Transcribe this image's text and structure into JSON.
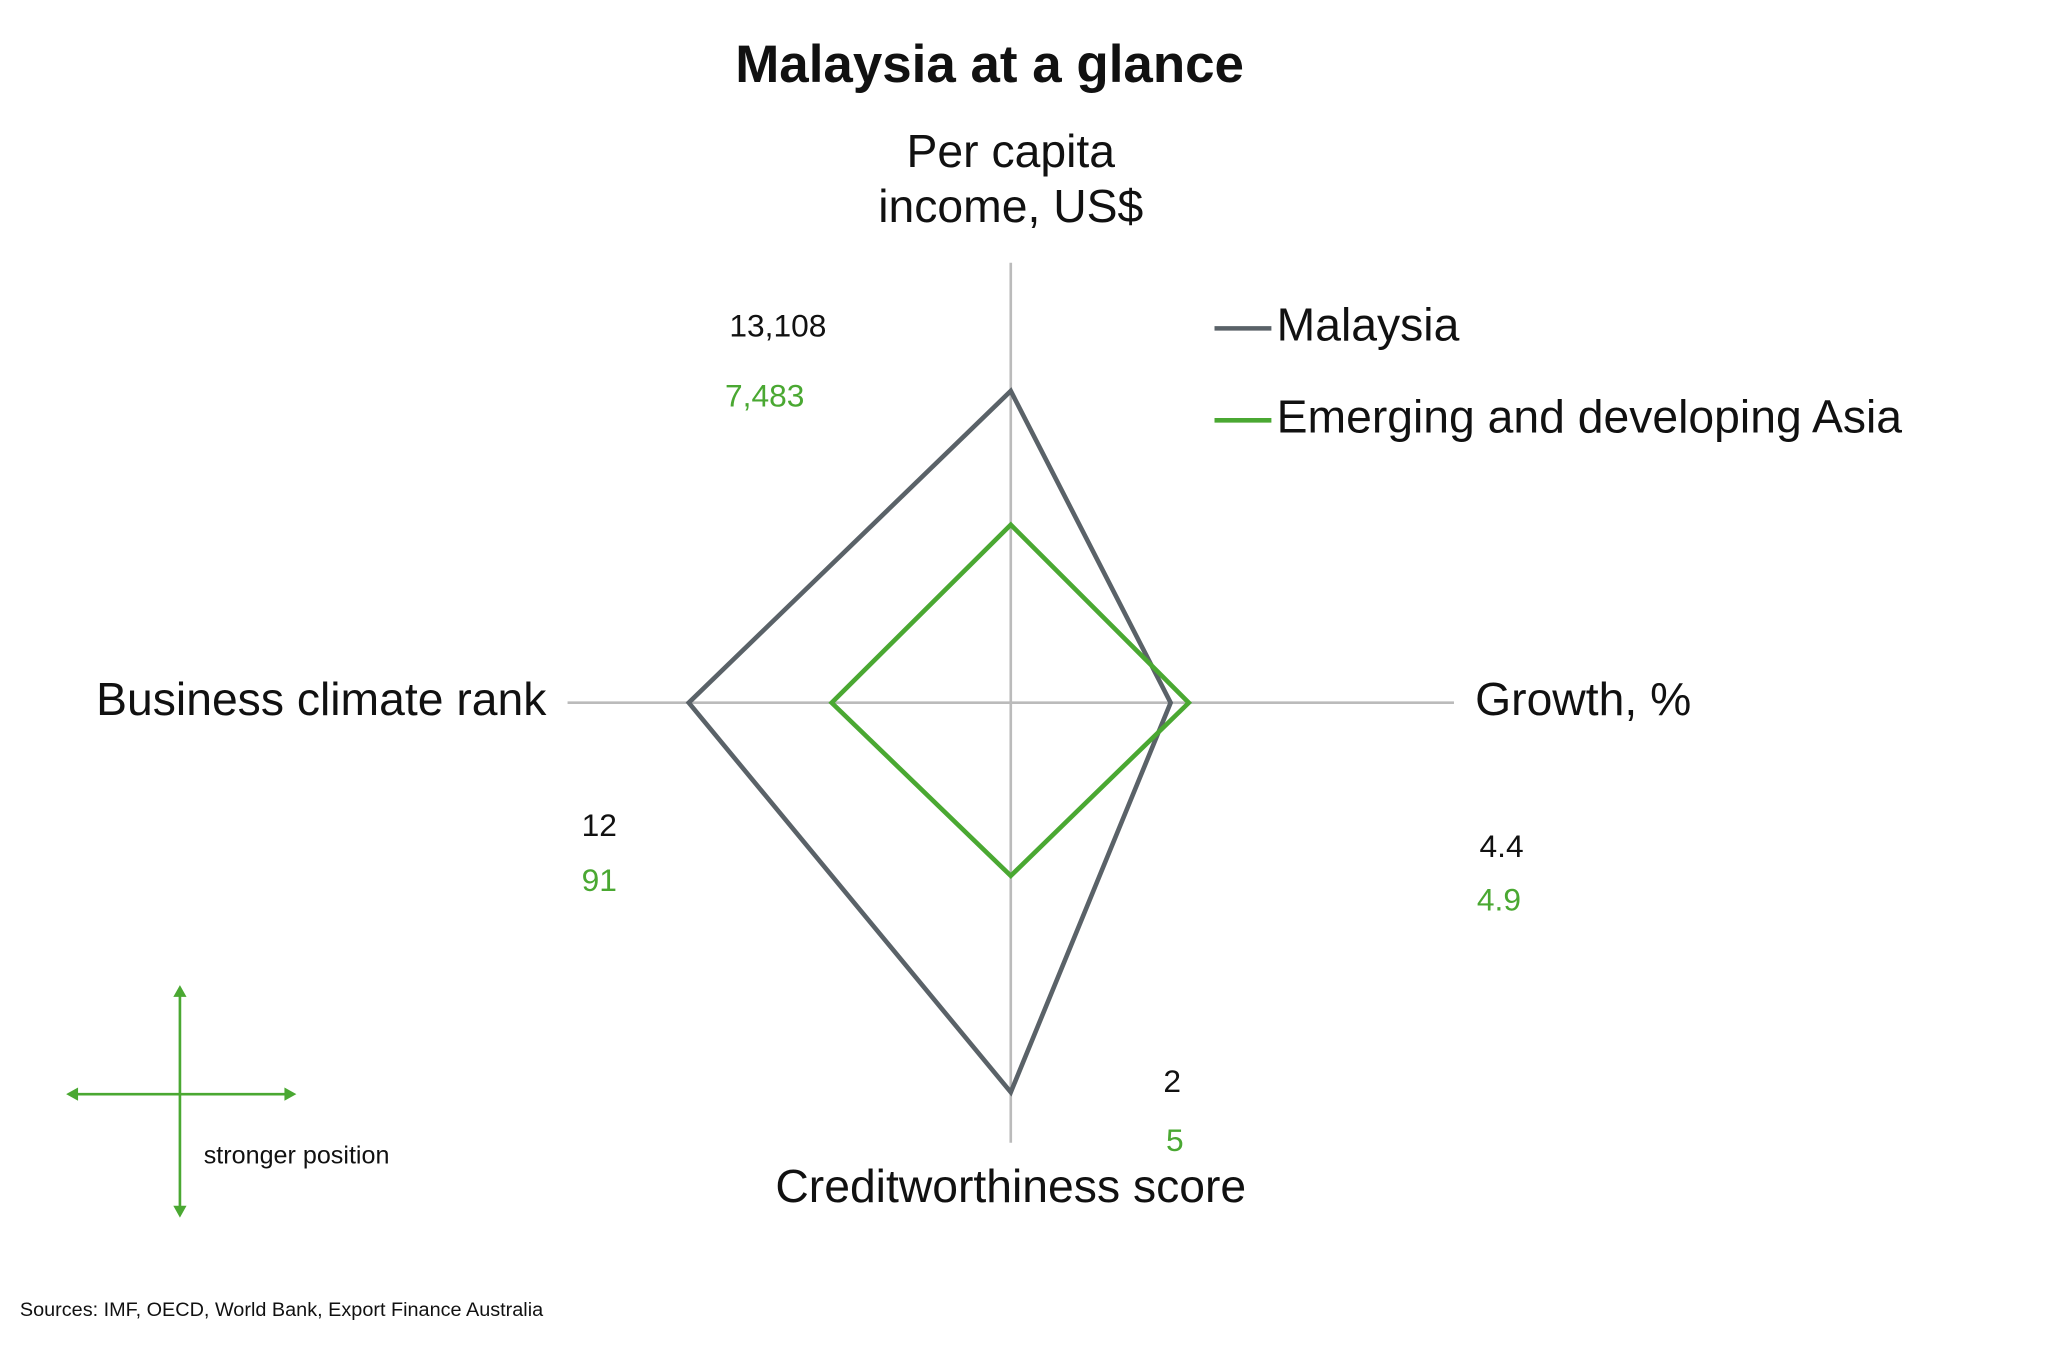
{
  "chart_data": {
    "type": "radar",
    "title": "Malaysia at a glance",
    "categories": [
      "Per capita income, US$",
      "Growth, %",
      "Creditworthiness score",
      "Business climate rank"
    ],
    "axis_lims": [
      [
        0,
        18500
      ],
      [
        0,
        12.2
      ],
      [
        7.4,
        1.3
      ],
      [
        190,
        -55
      ]
    ],
    "series": [
      {
        "name": "Malaysia",
        "color": "#5a6268",
        "values": [
          13108,
          4.4,
          2,
          12
        ],
        "value_labels": [
          "13,108",
          "4.4",
          "2",
          "12"
        ]
      },
      {
        "name": "Emerging and developing Asia",
        "color": "#4aa832",
        "values": [
          7483,
          4.9,
          5,
          91
        ],
        "value_labels": [
          "7,483",
          "4.9",
          "5",
          "91"
        ]
      }
    ],
    "legend": "top-right",
    "annotation": "stronger position",
    "source": "Sources: IMF, OECD, World Bank, Export Finance Australia"
  }
}
